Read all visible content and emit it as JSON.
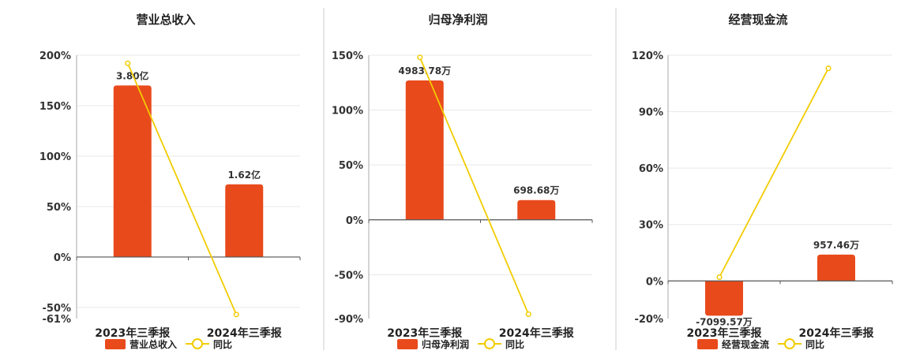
{
  "chart_data": [
    {
      "type": "bar",
      "title": "营业总收入",
      "categories": [
        "2023年三季报",
        "2024年三季报"
      ],
      "series": [
        {
          "name": "营业总收入",
          "values": [
            170,
            72
          ],
          "labels": [
            "3.80亿",
            "1.62亿"
          ],
          "color": "#E84A1C"
        },
        {
          "name": "同比",
          "type": "line",
          "values": [
            192,
            -57
          ],
          "color": "#F2CC00"
        }
      ],
      "yticks": [
        "200%",
        "150%",
        "100%",
        "50%",
        "0%",
        "-50%",
        "-61%"
      ],
      "ytick_values": [
        200,
        150,
        100,
        50,
        0,
        -50,
        -61
      ],
      "ylim": [
        -61,
        200
      ],
      "grid": true,
      "legend": "bottom"
    },
    {
      "type": "bar",
      "title": "归母净利润",
      "categories": [
        "2023年三季报",
        "2024年三季报"
      ],
      "series": [
        {
          "name": "归母净利润",
          "values": [
            127,
            18
          ],
          "labels": [
            "4983.78万",
            "698.68万"
          ],
          "color": "#E84A1C"
        },
        {
          "name": "同比",
          "type": "line",
          "values": [
            148,
            -86
          ],
          "color": "#F2CC00"
        }
      ],
      "yticks": [
        "150%",
        "100%",
        "50%",
        "0%",
        "-50%",
        "-90%"
      ],
      "ytick_values": [
        150,
        100,
        50,
        0,
        -50,
        -90
      ],
      "ylim": [
        -90,
        150
      ],
      "grid": true,
      "legend": "bottom"
    },
    {
      "type": "bar",
      "title": "经营现金流",
      "categories": [
        "2023年三季报",
        "2024年三季报"
      ],
      "series": [
        {
          "name": "经营现金流",
          "values": [
            -18.5,
            14
          ],
          "labels": [
            "-7099.57万",
            "957.46万"
          ],
          "color": "#E84A1C"
        },
        {
          "name": "同比",
          "type": "line",
          "values": [
            2,
            113
          ],
          "color": "#F2CC00"
        }
      ],
      "yticks": [
        "120%",
        "90%",
        "60%",
        "30%",
        "0%",
        "-20%"
      ],
      "ytick_values": [
        120,
        90,
        60,
        30,
        0,
        -20
      ],
      "ylim": [
        -20,
        120
      ],
      "grid": true,
      "legend": "bottom"
    }
  ]
}
